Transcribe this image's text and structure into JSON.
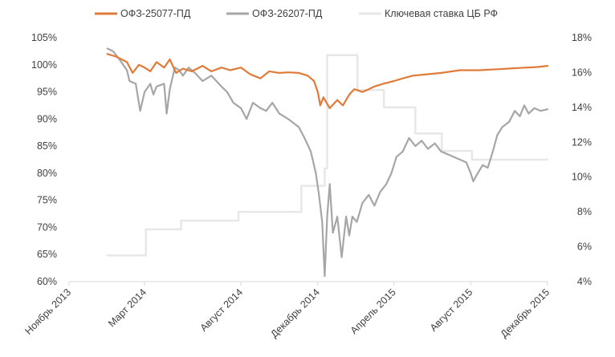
{
  "chart_data": {
    "type": "line",
    "legend_position": "top",
    "grid": false,
    "series": [
      {
        "name": "ОФЗ-25077-ПД",
        "color": "#E07B39",
        "axis": "left",
        "points": [
          [
            "2014-01-01",
            102.0
          ],
          [
            "2014-01-15",
            101.5
          ],
          [
            "2014-02-01",
            100.5
          ],
          [
            "2014-02-10",
            98.5
          ],
          [
            "2014-02-20",
            100.0
          ],
          [
            "2014-03-01",
            99.5
          ],
          [
            "2014-03-10",
            98.8
          ],
          [
            "2014-03-20",
            100.5
          ],
          [
            "2014-04-01",
            99.5
          ],
          [
            "2014-04-10",
            101.0
          ],
          [
            "2014-04-20",
            98.5
          ],
          [
            "2014-05-01",
            99.3
          ],
          [
            "2014-05-15",
            98.8
          ],
          [
            "2014-06-01",
            99.8
          ],
          [
            "2014-06-15",
            98.8
          ],
          [
            "2014-07-01",
            99.5
          ],
          [
            "2014-07-15",
            99.0
          ],
          [
            "2014-08-01",
            99.5
          ],
          [
            "2014-08-15",
            98.3
          ],
          [
            "2014-09-01",
            97.5
          ],
          [
            "2014-09-15",
            98.8
          ],
          [
            "2014-10-01",
            98.5
          ],
          [
            "2014-10-15",
            98.6
          ],
          [
            "2014-11-01",
            98.5
          ],
          [
            "2014-11-15",
            98.0
          ],
          [
            "2014-11-25",
            97.0
          ],
          [
            "2014-12-01",
            95.0
          ],
          [
            "2014-12-05",
            92.5
          ],
          [
            "2014-12-10",
            94.0
          ],
          [
            "2014-12-15",
            93.0
          ],
          [
            "2014-12-20",
            92.0
          ],
          [
            "2015-01-01",
            93.5
          ],
          [
            "2015-01-10",
            92.5
          ],
          [
            "2015-01-20",
            94.5
          ],
          [
            "2015-01-28",
            95.5
          ],
          [
            "2015-02-10",
            95.0
          ],
          [
            "2015-02-20",
            95.5
          ],
          [
            "2015-03-01",
            96.0
          ],
          [
            "2015-03-15",
            96.5
          ],
          [
            "2015-04-01",
            97.0
          ],
          [
            "2015-04-15",
            97.5
          ],
          [
            "2015-05-01",
            98.0
          ],
          [
            "2015-05-20",
            98.2
          ],
          [
            "2015-06-15",
            98.5
          ],
          [
            "2015-07-15",
            99.0
          ],
          [
            "2015-08-15",
            99.0
          ],
          [
            "2015-09-15",
            99.2
          ],
          [
            "2015-10-15",
            99.4
          ],
          [
            "2015-11-15",
            99.6
          ],
          [
            "2015-12-01",
            99.8
          ]
        ]
      },
      {
        "name": "ОФЗ-26207-ПД",
        "color": "#A6A6A6",
        "axis": "left",
        "points": [
          [
            "2014-01-01",
            103.0
          ],
          [
            "2014-01-10",
            102.5
          ],
          [
            "2014-01-20",
            101.0
          ],
          [
            "2014-02-01",
            99.0
          ],
          [
            "2014-02-05",
            97.0
          ],
          [
            "2014-02-15",
            96.5
          ],
          [
            "2014-02-22",
            91.5
          ],
          [
            "2014-03-01",
            95.0
          ],
          [
            "2014-03-10",
            96.5
          ],
          [
            "2014-03-15",
            94.5
          ],
          [
            "2014-03-20",
            96.0
          ],
          [
            "2014-04-01",
            96.5
          ],
          [
            "2014-04-05",
            91.0
          ],
          [
            "2014-04-10",
            95.5
          ],
          [
            "2014-04-18",
            99.5
          ],
          [
            "2014-04-25",
            99.0
          ],
          [
            "2014-05-01",
            98.0
          ],
          [
            "2014-05-10",
            99.5
          ],
          [
            "2014-05-20",
            98.5
          ],
          [
            "2014-06-01",
            97.0
          ],
          [
            "2014-06-15",
            98.0
          ],
          [
            "2014-07-01",
            96.0
          ],
          [
            "2014-07-10",
            95.0
          ],
          [
            "2014-07-20",
            93.0
          ],
          [
            "2014-08-01",
            92.0
          ],
          [
            "2014-08-10",
            90.0
          ],
          [
            "2014-08-20",
            93.0
          ],
          [
            "2014-09-01",
            92.0
          ],
          [
            "2014-09-10",
            91.5
          ],
          [
            "2014-09-20",
            93.0
          ],
          [
            "2014-10-01",
            91.0
          ],
          [
            "2014-10-15",
            90.0
          ],
          [
            "2014-11-01",
            88.5
          ],
          [
            "2014-11-10",
            86.5
          ],
          [
            "2014-11-20",
            84.0
          ],
          [
            "2014-11-28",
            80.0
          ],
          [
            "2014-12-03",
            76.0
          ],
          [
            "2014-12-08",
            71.0
          ],
          [
            "2014-12-12",
            61.0
          ],
          [
            "2014-12-16",
            72.0
          ],
          [
            "2014-12-20",
            78.0
          ],
          [
            "2014-12-25",
            69.0
          ],
          [
            "2015-01-01",
            72.0
          ],
          [
            "2015-01-08",
            64.5
          ],
          [
            "2015-01-15",
            72.0
          ],
          [
            "2015-01-20",
            68.5
          ],
          [
            "2015-01-25",
            72.0
          ],
          [
            "2015-02-01",
            71.0
          ],
          [
            "2015-02-10",
            74.5
          ],
          [
            "2015-02-20",
            76.0
          ],
          [
            "2015-03-01",
            74.0
          ],
          [
            "2015-03-10",
            76.5
          ],
          [
            "2015-03-20",
            78.0
          ],
          [
            "2015-03-28",
            80.0
          ],
          [
            "2015-04-05",
            83.0
          ],
          [
            "2015-04-15",
            84.0
          ],
          [
            "2015-04-25",
            86.5
          ],
          [
            "2015-05-05",
            85.0
          ],
          [
            "2015-05-15",
            86.0
          ],
          [
            "2015-05-25",
            84.5
          ],
          [
            "2015-06-05",
            85.5
          ],
          [
            "2015-06-15",
            84.0
          ],
          [
            "2015-06-25",
            83.5
          ],
          [
            "2015-07-05",
            83.0
          ],
          [
            "2015-07-15",
            82.5
          ],
          [
            "2015-07-25",
            82.0
          ],
          [
            "2015-08-01",
            80.0
          ],
          [
            "2015-08-05",
            78.5
          ],
          [
            "2015-08-12",
            80.0
          ],
          [
            "2015-08-20",
            81.5
          ],
          [
            "2015-08-28",
            81.0
          ],
          [
            "2015-09-05",
            84.0
          ],
          [
            "2015-09-12",
            87.0
          ],
          [
            "2015-09-20",
            88.5
          ],
          [
            "2015-10-01",
            89.5
          ],
          [
            "2015-10-10",
            91.5
          ],
          [
            "2015-10-18",
            90.5
          ],
          [
            "2015-10-25",
            92.5
          ],
          [
            "2015-11-01",
            91.0
          ],
          [
            "2015-11-10",
            92.0
          ],
          [
            "2015-11-20",
            91.5
          ],
          [
            "2015-12-01",
            91.8
          ]
        ]
      },
      {
        "name": "Ключевая ставка ЦБ РФ",
        "color": "#E7E7E7",
        "axis": "right",
        "step": true,
        "points": [
          [
            "2014-01-01",
            5.5
          ],
          [
            "2014-03-03",
            7.0
          ],
          [
            "2014-04-28",
            7.5
          ],
          [
            "2014-07-28",
            8.0
          ],
          [
            "2014-11-05",
            9.5
          ],
          [
            "2014-12-12",
            10.5
          ],
          [
            "2014-12-16",
            17.0
          ],
          [
            "2015-02-02",
            15.0
          ],
          [
            "2015-03-16",
            14.0
          ],
          [
            "2015-05-05",
            12.5
          ],
          [
            "2015-06-16",
            11.5
          ],
          [
            "2015-08-03",
            11.0
          ],
          [
            "2015-12-01",
            11.0
          ]
        ]
      }
    ],
    "x_axis": {
      "min": "2013-11-01",
      "max": "2015-12-01",
      "tick_labels": [
        "Ноябрь 2013",
        "Март 2014",
        "Август 2014",
        "Декабрь 2014",
        "Апрель 2015",
        "Август 2015",
        "Декабрь 2015"
      ],
      "tick_dates": [
        "2013-11-01",
        "2014-03-01",
        "2014-08-01",
        "2014-12-01",
        "2015-04-01",
        "2015-08-01",
        "2015-12-01"
      ]
    },
    "y_left": {
      "min": 60,
      "max": 105,
      "tick_labels": [
        "105%",
        "100%",
        "95%",
        "90%",
        "85%",
        "80%",
        "75%",
        "70%",
        "65%",
        "60%"
      ],
      "tick_values": [
        105,
        100,
        95,
        90,
        85,
        80,
        75,
        70,
        65,
        60
      ]
    },
    "y_right": {
      "min": 4,
      "max": 18,
      "tick_labels": [
        "18%",
        "16%",
        "14%",
        "12%",
        "10%",
        "8%",
        "6%",
        "4%"
      ],
      "tick_values": [
        18,
        16,
        14,
        12,
        10,
        8,
        6,
        4
      ]
    },
    "legend": [
      {
        "label": "ОФЗ-25077-ПД",
        "color": "#E07B39"
      },
      {
        "label": "ОФЗ-26207-ПД",
        "color": "#A6A6A6"
      },
      {
        "label": "Ключевая ставка ЦБ РФ",
        "color": "#E7E7E7"
      }
    ]
  }
}
